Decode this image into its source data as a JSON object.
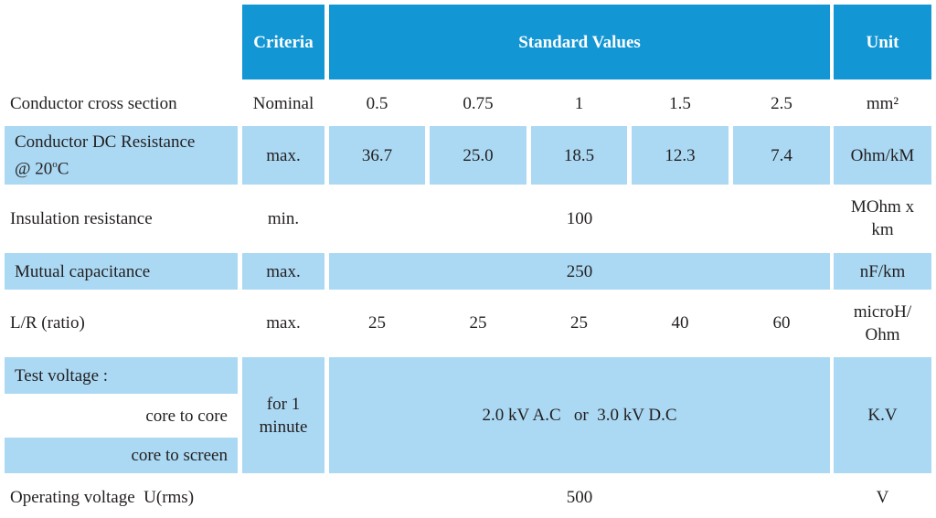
{
  "header": {
    "criteria": "Criteria",
    "standard_values": "Standard Values",
    "unit": "Unit"
  },
  "rows": {
    "cross_section": {
      "label": "Conductor cross section",
      "criteria": "Nominal",
      "values": [
        "0.5",
        "0.75",
        "1",
        "1.5",
        "2.5"
      ],
      "unit": "mm²"
    },
    "dc_resistance": {
      "label_line1": "Conductor DC Resistance",
      "label_line2_pre": "@ 20",
      "label_line2_sup": "o",
      "label_line2_post": "C",
      "criteria": "max.",
      "values": [
        "36.7",
        "25.0",
        "18.5",
        "12.3",
        "7.4"
      ],
      "unit": "Ohm/kM"
    },
    "insulation": {
      "label": "Insulation resistance",
      "criteria": "min.",
      "value": "100",
      "unit_line1": "MOhm x",
      "unit_line2": "km"
    },
    "capacitance": {
      "label": "Mutual capacitance",
      "criteria": "max.",
      "value": "250",
      "unit": "nF/km"
    },
    "lr_ratio": {
      "label": "L/R (ratio)",
      "criteria": "max.",
      "values": [
        "25",
        "25",
        "25",
        "40",
        "60"
      ],
      "unit_line1": "microH/",
      "unit_line2": "Ohm"
    },
    "test_voltage": {
      "label": "Test voltage :",
      "sub1": "core to core",
      "sub2": "core to screen",
      "criteria_line1": "for 1",
      "criteria_line2": "minute",
      "value": "2.0 kV A.C   or  3.0 kV D.C",
      "unit": "K.V"
    },
    "operating": {
      "label": "Operating voltage  U(rms)",
      "value": "500",
      "unit": "V"
    }
  },
  "colors": {
    "header_blue": "#1296d4",
    "light_blue": "#abd9f3",
    "text": "#231f20"
  }
}
